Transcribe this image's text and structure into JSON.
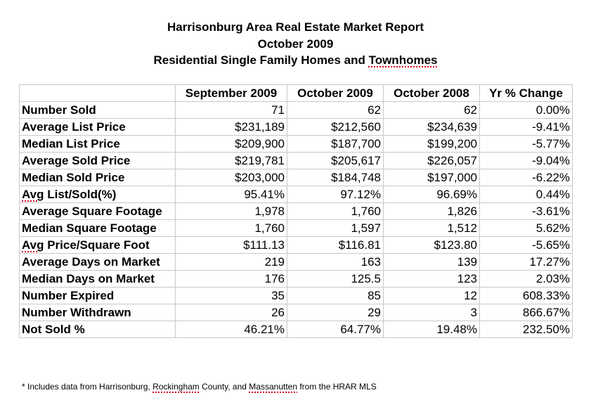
{
  "title": {
    "line1": "Harrisonburg Area Real Estate Market Report",
    "line2": "October 2009",
    "line3_prefix": "Residential Single Family Homes and ",
    "line3_word": "Townhomes"
  },
  "table": {
    "headers": [
      "",
      "September 2009",
      "October 2009",
      "October 2008",
      "Yr % Change"
    ],
    "rows": [
      {
        "label": "Number Sold",
        "values": [
          "71",
          "62",
          "62",
          "0.00%"
        ]
      },
      {
        "label": "Average List Price",
        "values": [
          "$231,189",
          "$212,560",
          "$234,639",
          "-9.41%"
        ]
      },
      {
        "label": "Median List Price",
        "values": [
          "$209,900",
          "$187,700",
          "$199,200",
          "-5.77%"
        ]
      },
      {
        "label": "Average Sold Price",
        "values": [
          "$219,781",
          "$205,617",
          "$226,057",
          "-9.04%"
        ]
      },
      {
        "label": "Median Sold Price",
        "values": [
          "$203,000",
          "$184,748",
          "$197,000",
          "-6.22%"
        ]
      },
      {
        "label": "Avg List/Sold(%)",
        "values": [
          "95.41%",
          "97.12%",
          "96.69%",
          "0.44%"
        ]
      },
      {
        "label": "Average Square Footage",
        "values": [
          "1,978",
          "1,760",
          "1,826",
          "-3.61%"
        ]
      },
      {
        "label": "Median Square Footage",
        "values": [
          "1,760",
          "1,597",
          "1,512",
          "5.62%"
        ]
      },
      {
        "label": "Avg Price/Square Foot",
        "values": [
          "$111.13",
          "$116.81",
          "$123.80",
          "-5.65%"
        ]
      },
      {
        "label": "Average Days on Market",
        "values": [
          "219",
          "163",
          "139",
          "17.27%"
        ]
      },
      {
        "label": "Median Days on Market",
        "values": [
          "176",
          "125.5",
          "123",
          "2.03%"
        ]
      },
      {
        "label": "Number Expired",
        "values": [
          "35",
          "85",
          "12",
          "608.33%"
        ]
      },
      {
        "label": "Number Withdrawn",
        "values": [
          "26",
          "29",
          "3",
          "866.67%"
        ]
      },
      {
        "label": "Not Sold %",
        "values": [
          "46.21%",
          "64.77%",
          "19.48%",
          "232.50%"
        ]
      }
    ]
  },
  "footnote": {
    "part1": "* Includes data from Harrisonburg, ",
    "word1": "Rockingham",
    "part2": " County, and ",
    "word2": "Massanutten",
    "part3": " from the HRAR MLS"
  }
}
